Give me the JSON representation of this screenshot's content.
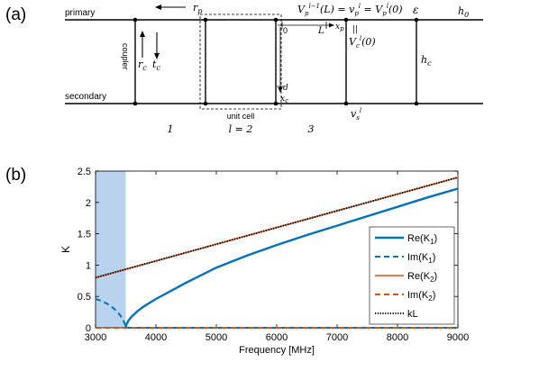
{
  "panel_a": {
    "label": "(a)",
    "primary_label": "primary",
    "secondary_label": "secondary",
    "coupler_label": "coupler",
    "unit_cell_label": "unit cell",
    "cell_numbers": [
      "1",
      "3"
    ],
    "l_eq": "l = 2",
    "r_p": "r_p",
    "r_c": "r_c",
    "t_c": "t_c",
    "h0": "h_0",
    "hc": "h_c",
    "epsilon": "ε",
    "zero_mark": "0",
    "L_mark": "L",
    "xp_mark": "x_p",
    "d_mark": "d",
    "xc_mark": "x_c",
    "vs_mark": "v_s^l",
    "eq_top": "V_p^{l−1}(L) = v_p^l = V_p^l(0)",
    "eq_parallel": "||",
    "eq_vc": "V_c^l(0)"
  },
  "panel_b": {
    "label": "(b)"
  },
  "chart_data": {
    "type": "line",
    "xlabel": "Frequency [MHz]",
    "ylabel": "K",
    "xlim": [
      3000,
      9000
    ],
    "ylim": [
      0,
      2.5
    ],
    "xticks": [
      "3000",
      "4000",
      "5000",
      "6000",
      "7000",
      "8000",
      "9000"
    ],
    "yticks": [
      "0",
      "0.5",
      "1",
      "1.5",
      "2",
      "2.5"
    ],
    "shaded_region": [
      3000,
      3500
    ],
    "grid": false,
    "legend_position": "right",
    "legend": [
      "Re(K_1)",
      "Im(K_1)",
      "Re(K_2)",
      "Im(K_2)",
      "kL"
    ],
    "series": [
      {
        "name": "Re(K_1)",
        "color": "#0072bd",
        "dash": "solid",
        "x": [
          3500,
          3510,
          3550,
          3600,
          3700,
          3800,
          4000,
          4500,
          5000,
          5500,
          6000,
          6500,
          7000,
          7500,
          8000,
          8500,
          9000
        ],
        "y": [
          0.0,
          0.05,
          0.12,
          0.18,
          0.27,
          0.34,
          0.46,
          0.72,
          0.96,
          1.15,
          1.32,
          1.48,
          1.63,
          1.78,
          1.93,
          2.08,
          2.22
        ]
      },
      {
        "name": "Im(K_1)",
        "color": "#0072bd",
        "dash": "dashed",
        "x": [
          3000,
          3100,
          3200,
          3300,
          3400,
          3450,
          3490,
          3500,
          4000,
          5000,
          6000,
          7000,
          8000,
          9000
        ],
        "y": [
          0.46,
          0.43,
          0.38,
          0.31,
          0.21,
          0.14,
          0.05,
          0.0,
          0.0,
          0.0,
          0.0,
          0.0,
          0.0,
          0.0
        ]
      },
      {
        "name": "Re(K_2)",
        "color": "#d95319",
        "dash": "solid",
        "x": [
          3000,
          9000
        ],
        "y": [
          0.8,
          2.4
        ]
      },
      {
        "name": "Im(K_2)",
        "color": "#d95319",
        "dash": "dashed",
        "x": [
          3000,
          9000
        ],
        "y": [
          0.0,
          0.0
        ]
      },
      {
        "name": "kL",
        "color": "#000000",
        "dash": "dotted",
        "x": [
          3000,
          9000
        ],
        "y": [
          0.8,
          2.4
        ]
      }
    ]
  }
}
